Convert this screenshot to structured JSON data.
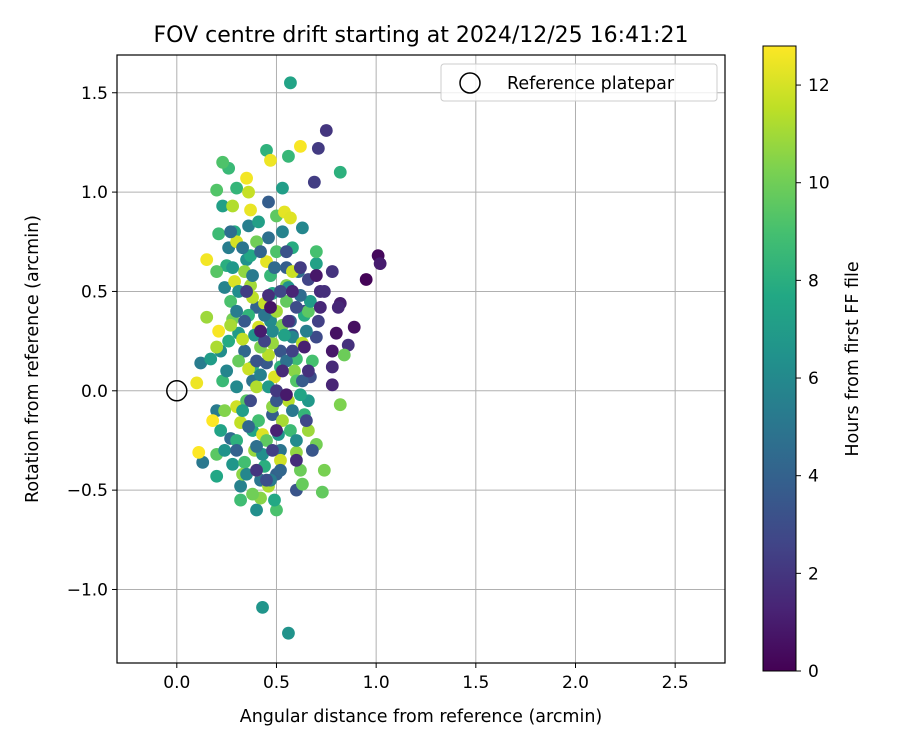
{
  "chart_data": {
    "type": "scatter",
    "title": "FOV centre drift starting at 2024/12/25 16:41:21",
    "xlabel": "Angular distance from reference (arcmin)",
    "ylabel": "Rotation from reference (arcmin)",
    "xlim": [
      -0.3,
      2.75
    ],
    "ylim": [
      -1.37,
      1.69
    ],
    "xticks": [
      0.0,
      0.5,
      1.0,
      1.5,
      2.0,
      2.5
    ],
    "xtick_labels": [
      "0.0",
      "0.5",
      "1.0",
      "1.5",
      "2.0",
      "2.5"
    ],
    "yticks": [
      -1.0,
      -0.5,
      0.0,
      0.5,
      1.0,
      1.5
    ],
    "ytick_labels": [
      "−1.0",
      "−0.5",
      "0.0",
      "0.5",
      "1.0",
      "1.5"
    ],
    "grid": true,
    "legend": {
      "placement": "top-right",
      "entries": [
        {
          "label": "Reference platepar",
          "marker": "open-circle"
        }
      ]
    },
    "colorbar": {
      "label": "Hours from first FF file",
      "colormap": "viridis",
      "range": [
        0,
        12.8
      ],
      "ticks": [
        0,
        2,
        4,
        6,
        8,
        10,
        12
      ],
      "tick_labels": [
        "0",
        "2",
        "4",
        "6",
        "8",
        "10",
        "12"
      ]
    },
    "reference_point": {
      "x": 0.0,
      "y": 0.0
    },
    "points": [
      {
        "x": 0.95,
        "y": 0.56,
        "h": 0.1
      },
      {
        "x": 1.01,
        "y": 0.68,
        "h": 0.3
      },
      {
        "x": 0.89,
        "y": 0.32,
        "h": 0.5
      },
      {
        "x": 0.8,
        "y": 0.29,
        "h": 0.6
      },
      {
        "x": 0.78,
        "y": 0.2,
        "h": 0.8
      },
      {
        "x": 1.02,
        "y": 0.64,
        "h": 1.0
      },
      {
        "x": 0.82,
        "y": 0.44,
        "h": 1.1
      },
      {
        "x": 0.78,
        "y": 0.03,
        "h": 1.3
      },
      {
        "x": 0.81,
        "y": 0.42,
        "h": 1.4
      },
      {
        "x": 0.78,
        "y": 0.12,
        "h": 1.5
      },
      {
        "x": 0.72,
        "y": 0.5,
        "h": 1.6
      },
      {
        "x": 0.74,
        "y": 0.5,
        "h": 1.7
      },
      {
        "x": 0.86,
        "y": 0.23,
        "h": 1.8
      },
      {
        "x": 0.78,
        "y": 0.6,
        "h": 1.9
      },
      {
        "x": 0.75,
        "y": 1.31,
        "h": 2.0
      },
      {
        "x": 0.71,
        "y": 1.22,
        "h": 2.2
      },
      {
        "x": 0.69,
        "y": 1.05,
        "h": 2.3
      },
      {
        "x": 0.71,
        "y": 0.35,
        "h": 2.4
      },
      {
        "x": 0.66,
        "y": 0.56,
        "h": 2.6
      },
      {
        "x": 0.64,
        "y": 0.4,
        "h": 2.8
      },
      {
        "x": 0.7,
        "y": 0.27,
        "h": 2.9
      },
      {
        "x": 0.67,
        "y": 0.07,
        "h": 3.0
      },
      {
        "x": 0.58,
        "y": 0.28,
        "h": 3.2
      },
      {
        "x": 0.6,
        "y": -0.5,
        "h": 3.3
      },
      {
        "x": 0.52,
        "y": 0.2,
        "h": 3.4
      },
      {
        "x": 0.45,
        "y": 0.14,
        "h": 3.6
      },
      {
        "x": 0.48,
        "y": -0.12,
        "h": 3.7
      },
      {
        "x": 0.55,
        "y": 0.62,
        "h": 3.8
      },
      {
        "x": 0.5,
        "y": -0.42,
        "h": 4.0
      },
      {
        "x": 0.4,
        "y": 0.42,
        "h": 4.1
      },
      {
        "x": 0.34,
        "y": 0.2,
        "h": 4.3
      },
      {
        "x": 0.27,
        "y": -0.24,
        "h": 4.5
      },
      {
        "x": 0.61,
        "y": 0.6,
        "h": 4.6
      },
      {
        "x": 0.46,
        "y": 0.77,
        "h": 4.7
      },
      {
        "x": 0.38,
        "y": 0.05,
        "h": 4.8
      },
      {
        "x": 0.52,
        "y": -0.3,
        "h": 4.9
      },
      {
        "x": 0.42,
        "y": -0.45,
        "h": 5.0
      },
      {
        "x": 0.13,
        "y": -0.36,
        "h": 5.1
      },
      {
        "x": 0.2,
        "y": -0.1,
        "h": 5.2
      },
      {
        "x": 0.12,
        "y": 0.14,
        "h": 5.3
      },
      {
        "x": 0.26,
        "y": 0.72,
        "h": 5.4
      },
      {
        "x": 0.36,
        "y": 0.83,
        "h": 5.5
      },
      {
        "x": 0.32,
        "y": -0.48,
        "h": 5.6
      },
      {
        "x": 0.24,
        "y": 0.52,
        "h": 5.7
      },
      {
        "x": 0.58,
        "y": 0.27,
        "h": 5.8
      },
      {
        "x": 0.63,
        "y": 0.82,
        "h": 5.9
      },
      {
        "x": 0.3,
        "y": 0.02,
        "h": 6.0
      },
      {
        "x": 0.47,
        "y": 0.35,
        "h": 6.1
      },
      {
        "x": 0.22,
        "y": 0.2,
        "h": 6.2
      },
      {
        "x": 0.4,
        "y": -0.6,
        "h": 6.3
      },
      {
        "x": 0.35,
        "y": 0.66,
        "h": 6.4
      },
      {
        "x": 0.56,
        "y": -1.22,
        "h": 6.5
      },
      {
        "x": 0.43,
        "y": -1.09,
        "h": 6.6
      },
      {
        "x": 0.28,
        "y": -0.37,
        "h": 6.7
      },
      {
        "x": 0.66,
        "y": -0.05,
        "h": 6.8
      },
      {
        "x": 0.31,
        "y": 0.29,
        "h": 6.9
      },
      {
        "x": 0.17,
        "y": 0.16,
        "h": 7.0
      },
      {
        "x": 0.53,
        "y": 1.02,
        "h": 7.1
      },
      {
        "x": 0.23,
        "y": 0.93,
        "h": 7.2
      },
      {
        "x": 0.7,
        "y": 0.64,
        "h": 7.3
      },
      {
        "x": 0.57,
        "y": 1.55,
        "h": 7.4
      },
      {
        "x": 0.38,
        "y": -0.2,
        "h": 7.5
      },
      {
        "x": 0.2,
        "y": -0.43,
        "h": 7.6
      },
      {
        "x": 0.48,
        "y": 0.49,
        "h": 7.7
      },
      {
        "x": 0.29,
        "y": 0.8,
        "h": 7.8
      },
      {
        "x": 0.64,
        "y": 0.38,
        "h": 7.9
      },
      {
        "x": 0.25,
        "y": 0.63,
        "h": 8.0
      },
      {
        "x": 0.82,
        "y": 1.1,
        "h": 8.1
      },
      {
        "x": 0.45,
        "y": 1.21,
        "h": 8.2
      },
      {
        "x": 0.38,
        "y": 0.12,
        "h": 8.3
      },
      {
        "x": 0.3,
        "y": 1.02,
        "h": 8.4
      },
      {
        "x": 0.56,
        "y": 1.18,
        "h": 8.5
      },
      {
        "x": 0.26,
        "y": 1.12,
        "h": 8.6
      },
      {
        "x": 0.21,
        "y": 0.79,
        "h": 8.7
      },
      {
        "x": 0.6,
        "y": 0.16,
        "h": 8.8
      },
      {
        "x": 0.34,
        "y": -0.36,
        "h": 8.9
      },
      {
        "x": 0.7,
        "y": 0.7,
        "h": 9.0
      },
      {
        "x": 0.5,
        "y": -0.6,
        "h": 9.1
      },
      {
        "x": 0.23,
        "y": 1.15,
        "h": 9.2
      },
      {
        "x": 0.2,
        "y": 1.01,
        "h": 9.3
      },
      {
        "x": 0.2,
        "y": 0.6,
        "h": 9.4
      },
      {
        "x": 0.66,
        "y": 0.4,
        "h": 9.5
      },
      {
        "x": 0.5,
        "y": 0.88,
        "h": 9.6
      },
      {
        "x": 0.73,
        "y": -0.51,
        "h": 9.7
      },
      {
        "x": 0.63,
        "y": -0.47,
        "h": 9.8
      },
      {
        "x": 0.84,
        "y": 0.18,
        "h": 9.9
      },
      {
        "x": 0.4,
        "y": 0.75,
        "h": 10.0
      },
      {
        "x": 0.28,
        "y": 0.36,
        "h": 10.1
      },
      {
        "x": 0.74,
        "y": -0.4,
        "h": 10.2
      },
      {
        "x": 0.82,
        "y": -0.07,
        "h": 10.3
      },
      {
        "x": 0.55,
        "y": 0.53,
        "h": 10.4
      },
      {
        "x": 0.42,
        "y": -0.54,
        "h": 10.5
      },
      {
        "x": 0.33,
        "y": -0.42,
        "h": 10.6
      },
      {
        "x": 0.6,
        "y": -0.31,
        "h": 10.7
      },
      {
        "x": 0.48,
        "y": 0.24,
        "h": 10.8
      },
      {
        "x": 0.15,
        "y": 0.37,
        "h": 10.9
      },
      {
        "x": 0.37,
        "y": 0.53,
        "h": 11.0
      },
      {
        "x": 0.53,
        "y": -0.15,
        "h": 11.1
      },
      {
        "x": 0.2,
        "y": 0.22,
        "h": 11.2
      },
      {
        "x": 0.28,
        "y": 0.93,
        "h": 11.3
      },
      {
        "x": 0.46,
        "y": 0.18,
        "h": 11.4
      },
      {
        "x": 0.38,
        "y": 0.47,
        "h": 11.5
      },
      {
        "x": 0.32,
        "y": -0.16,
        "h": 11.6
      },
      {
        "x": 0.36,
        "y": 1.0,
        "h": 11.7
      },
      {
        "x": 0.58,
        "y": 0.6,
        "h": 11.8
      },
      {
        "x": 0.3,
        "y": -0.08,
        "h": 11.9
      },
      {
        "x": 0.41,
        "y": 0.32,
        "h": 12.0
      },
      {
        "x": 0.29,
        "y": 0.55,
        "h": 12.1
      },
      {
        "x": 0.49,
        "y": 0.07,
        "h": 12.2
      },
      {
        "x": 0.54,
        "y": 0.9,
        "h": 12.3
      },
      {
        "x": 0.37,
        "y": 0.91,
        "h": 12.4
      },
      {
        "x": 0.47,
        "y": 1.16,
        "h": 12.5
      },
      {
        "x": 0.35,
        "y": 1.07,
        "h": 12.6
      },
      {
        "x": 0.62,
        "y": 1.23,
        "h": 12.7
      },
      {
        "x": 0.11,
        "y": -0.31,
        "h": 12.8
      },
      {
        "x": 0.18,
        "y": -0.15,
        "h": 12.8
      },
      {
        "x": 0.21,
        "y": 0.3,
        "h": 12.7
      },
      {
        "x": 0.15,
        "y": 0.66,
        "h": 12.6
      },
      {
        "x": 0.1,
        "y": 0.04,
        "h": 12.5
      },
      {
        "x": 0.4,
        "y": -0.4,
        "h": 12.4
      },
      {
        "x": 0.45,
        "y": 0.65,
        "h": 12.3
      },
      {
        "x": 0.57,
        "y": 0.87,
        "h": 12.2
      },
      {
        "x": 0.43,
        "y": -0.22,
        "h": 12.1
      },
      {
        "x": 0.3,
        "y": 0.75,
        "h": 12.0
      },
      {
        "x": 0.52,
        "y": -0.35,
        "h": 11.9
      },
      {
        "x": 0.36,
        "y": 0.11,
        "h": 11.8
      },
      {
        "x": 0.44,
        "y": 0.44,
        "h": 11.7
      },
      {
        "x": 0.33,
        "y": 0.26,
        "h": 11.6
      },
      {
        "x": 0.63,
        "y": 0.24,
        "h": 11.5
      },
      {
        "x": 0.56,
        "y": -0.05,
        "h": 11.4
      },
      {
        "x": 0.4,
        "y": 0.02,
        "h": 11.3
      },
      {
        "x": 0.46,
        "y": -0.48,
        "h": 11.2
      },
      {
        "x": 0.27,
        "y": 0.33,
        "h": 11.1
      },
      {
        "x": 0.5,
        "y": 0.4,
        "h": 11.0
      },
      {
        "x": 0.66,
        "y": -0.2,
        "h": 10.9
      },
      {
        "x": 0.39,
        "y": -0.3,
        "h": 10.8
      },
      {
        "x": 0.34,
        "y": 0.6,
        "h": 10.7
      },
      {
        "x": 0.48,
        "y": -0.08,
        "h": 10.6
      },
      {
        "x": 0.59,
        "y": 0.1,
        "h": 10.5
      },
      {
        "x": 0.24,
        "y": -0.1,
        "h": 10.4
      },
      {
        "x": 0.42,
        "y": 0.22,
        "h": 10.3
      },
      {
        "x": 0.53,
        "y": 0.33,
        "h": 10.2
      },
      {
        "x": 0.7,
        "y": -0.27,
        "h": 10.1
      },
      {
        "x": 0.38,
        "y": -0.52,
        "h": 10.0
      },
      {
        "x": 0.62,
        "y": -0.4,
        "h": 9.9
      },
      {
        "x": 0.31,
        "y": 0.15,
        "h": 9.8
      },
      {
        "x": 0.55,
        "y": 0.45,
        "h": 9.7
      },
      {
        "x": 0.45,
        "y": -0.25,
        "h": 9.6
      },
      {
        "x": 0.2,
        "y": -0.32,
        "h": 9.5
      },
      {
        "x": 0.35,
        "y": -0.05,
        "h": 9.4
      },
      {
        "x": 0.6,
        "y": 0.05,
        "h": 9.3
      },
      {
        "x": 0.5,
        "y": 0.7,
        "h": 9.2
      },
      {
        "x": 0.27,
        "y": 0.45,
        "h": 9.1
      },
      {
        "x": 0.68,
        "y": 0.15,
        "h": 9.0
      },
      {
        "x": 0.41,
        "y": -0.15,
        "h": 8.9
      },
      {
        "x": 0.32,
        "y": -0.55,
        "h": 8.8
      },
      {
        "x": 0.57,
        "y": -0.2,
        "h": 8.7
      },
      {
        "x": 0.23,
        "y": 0.05,
        "h": 8.6
      },
      {
        "x": 0.47,
        "y": 0.58,
        "h": 8.5
      },
      {
        "x": 0.64,
        "y": -0.12,
        "h": 8.4
      },
      {
        "x": 0.36,
        "y": 0.38,
        "h": 8.3
      },
      {
        "x": 0.52,
        "y": 0.12,
        "h": 8.2
      },
      {
        "x": 0.3,
        "y": -0.25,
        "h": 8.1
      },
      {
        "x": 0.44,
        "y": -0.38,
        "h": 8.0
      },
      {
        "x": 0.58,
        "y": 0.72,
        "h": 7.9
      },
      {
        "x": 0.26,
        "y": 0.25,
        "h": 7.8
      },
      {
        "x": 0.49,
        "y": -0.55,
        "h": 7.7
      },
      {
        "x": 0.37,
        "y": 0.68,
        "h": 7.6
      },
      {
        "x": 0.62,
        "y": -0.02,
        "h": 7.5
      },
      {
        "x": 0.22,
        "y": -0.2,
        "h": 7.4
      },
      {
        "x": 0.54,
        "y": 0.28,
        "h": 7.3
      },
      {
        "x": 0.41,
        "y": 0.85,
        "h": 7.2
      },
      {
        "x": 0.33,
        "y": -0.1,
        "h": 7.1
      },
      {
        "x": 0.67,
        "y": 0.45,
        "h": 7.0
      },
      {
        "x": 0.46,
        "y": 0.02,
        "h": 6.9
      },
      {
        "x": 0.28,
        "y": 0.62,
        "h": 6.8
      },
      {
        "x": 0.51,
        "y": -0.22,
        "h": 6.7
      },
      {
        "x": 0.39,
        "y": 0.28,
        "h": 6.6
      },
      {
        "x": 0.24,
        "y": -0.3,
        "h": 6.5
      },
      {
        "x": 0.56,
        "y": 0.52,
        "h": 6.4
      },
      {
        "x": 0.43,
        "y": -0.32,
        "h": 6.3
      },
      {
        "x": 0.31,
        "y": 0.5,
        "h": 6.2
      },
      {
        "x": 0.6,
        "y": -0.25,
        "h": 6.1
      },
      {
        "x": 0.48,
        "y": 0.3,
        "h": 6.0
      },
      {
        "x": 0.35,
        "y": -0.42,
        "h": 5.9
      },
      {
        "x": 0.25,
        "y": 0.1,
        "h": 5.8
      },
      {
        "x": 0.53,
        "y": 0.8,
        "h": 5.7
      },
      {
        "x": 0.42,
        "y": 0.08,
        "h": 5.6
      },
      {
        "x": 0.65,
        "y": 0.3,
        "h": 5.5
      },
      {
        "x": 0.3,
        "y": 0.4,
        "h": 5.4
      },
      {
        "x": 0.47,
        "y": -0.45,
        "h": 5.3
      },
      {
        "x": 0.38,
        "y": 0.58,
        "h": 5.2
      },
      {
        "x": 0.58,
        "y": -0.1,
        "h": 5.1
      },
      {
        "x": 0.44,
        "y": 0.38,
        "h": 5.0
      },
      {
        "x": 0.33,
        "y": 0.72,
        "h": 4.9
      },
      {
        "x": 0.55,
        "y": 0.15,
        "h": 4.8
      },
      {
        "x": 0.4,
        "y": -0.28,
        "h": 4.7
      },
      {
        "x": 0.27,
        "y": 0.8,
        "h": 4.6
      },
      {
        "x": 0.62,
        "y": 0.48,
        "h": 4.5
      },
      {
        "x": 0.49,
        "y": 0.62,
        "h": 4.4
      },
      {
        "x": 0.36,
        "y": -0.18,
        "h": 4.3
      },
      {
        "x": 0.52,
        "y": -0.4,
        "h": 4.2
      },
      {
        "x": 0.42,
        "y": 0.7,
        "h": 4.1
      },
      {
        "x": 0.3,
        "y": -0.3,
        "h": 4.0
      },
      {
        "x": 0.57,
        "y": 0.35,
        "h": 3.9
      },
      {
        "x": 0.46,
        "y": 0.95,
        "h": 3.8
      },
      {
        "x": 0.63,
        "y": 0.05,
        "h": 3.7
      },
      {
        "x": 0.34,
        "y": 0.35,
        "h": 3.6
      },
      {
        "x": 0.5,
        "y": -0.05,
        "h": 3.5
      },
      {
        "x": 0.68,
        "y": -0.3,
        "h": 3.4
      },
      {
        "x": 0.4,
        "y": 0.15,
        "h": 3.3
      },
      {
        "x": 0.55,
        "y": 0.7,
        "h": 3.2
      },
      {
        "x": 0.45,
        "y": -0.45,
        "h": 3.1
      },
      {
        "x": 0.6,
        "y": 0.42,
        "h": 3.0
      },
      {
        "x": 0.37,
        "y": -0.05,
        "h": 2.9
      },
      {
        "x": 0.52,
        "y": 0.5,
        "h": 2.8
      },
      {
        "x": 0.65,
        "y": -0.15,
        "h": 2.7
      },
      {
        "x": 0.44,
        "y": 0.25,
        "h": 2.6
      },
      {
        "x": 0.58,
        "y": 0.2,
        "h": 2.5
      },
      {
        "x": 0.48,
        "y": -0.3,
        "h": 2.4
      },
      {
        "x": 0.35,
        "y": 0.5,
        "h": 2.3
      },
      {
        "x": 0.62,
        "y": 0.62,
        "h": 2.2
      },
      {
        "x": 0.5,
        "y": 0.0,
        "h": 2.1
      },
      {
        "x": 0.4,
        "y": -0.4,
        "h": 2.0
      },
      {
        "x": 0.56,
        "y": 0.35,
        "h": 1.9
      },
      {
        "x": 0.66,
        "y": 0.1,
        "h": 1.8
      },
      {
        "x": 0.46,
        "y": 0.48,
        "h": 1.7
      },
      {
        "x": 0.6,
        "y": -0.35,
        "h": 1.6
      },
      {
        "x": 0.53,
        "y": 0.1,
        "h": 1.5
      },
      {
        "x": 0.72,
        "y": 0.42,
        "h": 1.4
      },
      {
        "x": 0.58,
        "y": 0.5,
        "h": 1.3
      },
      {
        "x": 0.5,
        "y": -0.2,
        "h": 1.2
      },
      {
        "x": 0.64,
        "y": 0.22,
        "h": 1.1
      },
      {
        "x": 0.42,
        "y": 0.3,
        "h": 1.0
      },
      {
        "x": 0.55,
        "y": -0.02,
        "h": 0.9
      },
      {
        "x": 0.7,
        "y": 0.58,
        "h": 0.8
      },
      {
        "x": 0.47,
        "y": 0.42,
        "h": 0.7
      }
    ]
  }
}
